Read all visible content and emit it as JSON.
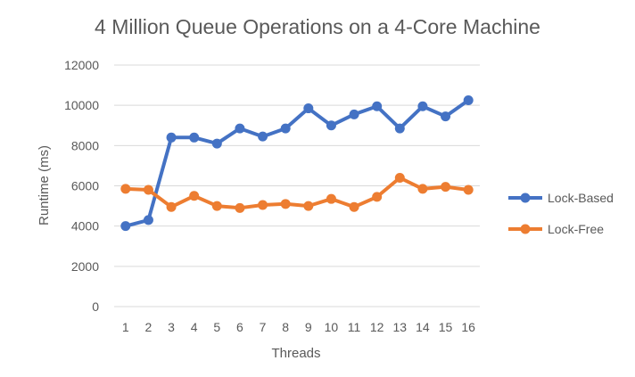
{
  "chart_data": {
    "type": "line",
    "title": "4 Million Queue Operations on a 4-Core Machine",
    "xlabel": "Threads",
    "ylabel": "Runtime (ms)",
    "x": [
      1,
      2,
      3,
      4,
      5,
      6,
      7,
      8,
      9,
      10,
      11,
      12,
      13,
      14,
      15,
      16
    ],
    "x_tick_labels": [
      "1",
      "2",
      "3",
      "4",
      "5",
      "6",
      "7",
      "8",
      "9",
      "10",
      "11",
      "12",
      "13",
      "14",
      "15",
      "16"
    ],
    "ylim": [
      0,
      12000
    ],
    "y_ticks": [
      0,
      2000,
      4000,
      6000,
      8000,
      10000,
      12000
    ],
    "y_tick_labels": [
      "0",
      "2000",
      "4000",
      "6000",
      "8000",
      "10000",
      "12000"
    ],
    "grid": true,
    "legend_position": "right",
    "series": [
      {
        "name": "Lock-Based",
        "color": "#4472c4",
        "values": [
          4000,
          4300,
          8400,
          8400,
          8100,
          8850,
          8450,
          8850,
          9850,
          9000,
          9550,
          9950,
          8850,
          9950,
          9450,
          10250
        ]
      },
      {
        "name": "Lock-Free",
        "color": "#ed7d31",
        "values": [
          5850,
          5800,
          4950,
          5500,
          5000,
          4900,
          5050,
          5100,
          5000,
          5350,
          4950,
          5450,
          6400,
          5850,
          5950,
          5800
        ]
      }
    ]
  }
}
